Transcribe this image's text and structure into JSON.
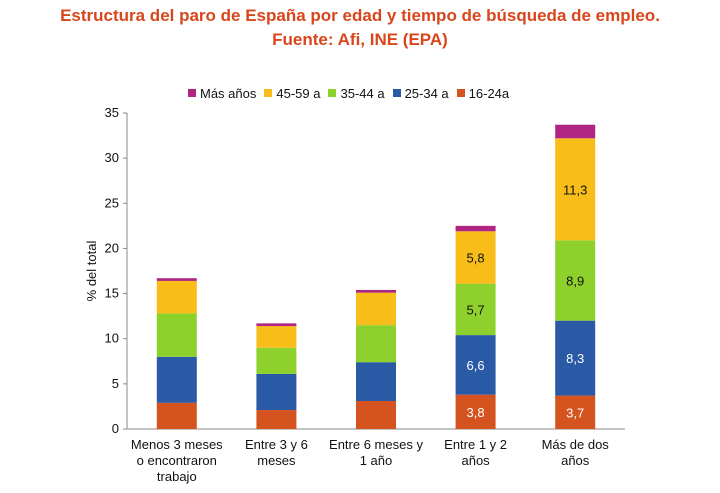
{
  "title_line1": "Estructura del paro de España por edad y tiempo de búsqueda de empleo.",
  "title_line2": "Fuente: Afi, INE (EPA)",
  "chart_data": {
    "type": "bar",
    "stacked": true,
    "ylabel": "% del total",
    "ylim": [
      0,
      35
    ],
    "yticks": [
      "0",
      "5",
      "10",
      "15",
      "20",
      "25",
      "30",
      "35"
    ],
    "categories": [
      [
        "Menos 3 meses",
        "o encontraron",
        "trabajo"
      ],
      [
        "Entre 3 y 6",
        "meses"
      ],
      [
        "Entre 6 meses y",
        "1 año"
      ],
      [
        "Entre 1 y 2",
        "años"
      ],
      [
        "Más de dos",
        "años"
      ]
    ],
    "legend_position": "top",
    "legend_order": [
      "Más años",
      "45-59 a",
      "35-44 a",
      "25-34 a",
      "16-24a"
    ],
    "series": [
      {
        "name": "16-24a",
        "color": "#d5531f",
        "values": [
          2.9,
          2.1,
          3.1,
          3.8,
          3.7
        ],
        "labels": [
          "",
          "",
          "",
          "3,8",
          "3,7"
        ]
      },
      {
        "name": "25-34 a",
        "color": "#2a59a6",
        "values": [
          5.1,
          4.0,
          4.3,
          6.6,
          8.3
        ],
        "labels": [
          "",
          "",
          "",
          "6,6",
          "8,3"
        ]
      },
      {
        "name": "35-44 a",
        "color": "#8fd12c",
        "values": [
          4.8,
          2.9,
          4.1,
          5.7,
          8.9
        ],
        "labels": [
          "",
          "",
          "",
          "5,7",
          "8,9"
        ]
      },
      {
        "name": "45-59 a",
        "color": "#f8bd19",
        "values": [
          3.6,
          2.4,
          3.6,
          5.8,
          11.3
        ],
        "labels": [
          "",
          "",
          "",
          "5,8",
          "11,3"
        ]
      },
      {
        "name": "Más años",
        "color": "#b02482",
        "values": [
          0.3,
          0.3,
          0.3,
          0.6,
          1.5
        ],
        "labels": [
          "",
          "",
          "",
          "",
          ""
        ]
      }
    ]
  }
}
